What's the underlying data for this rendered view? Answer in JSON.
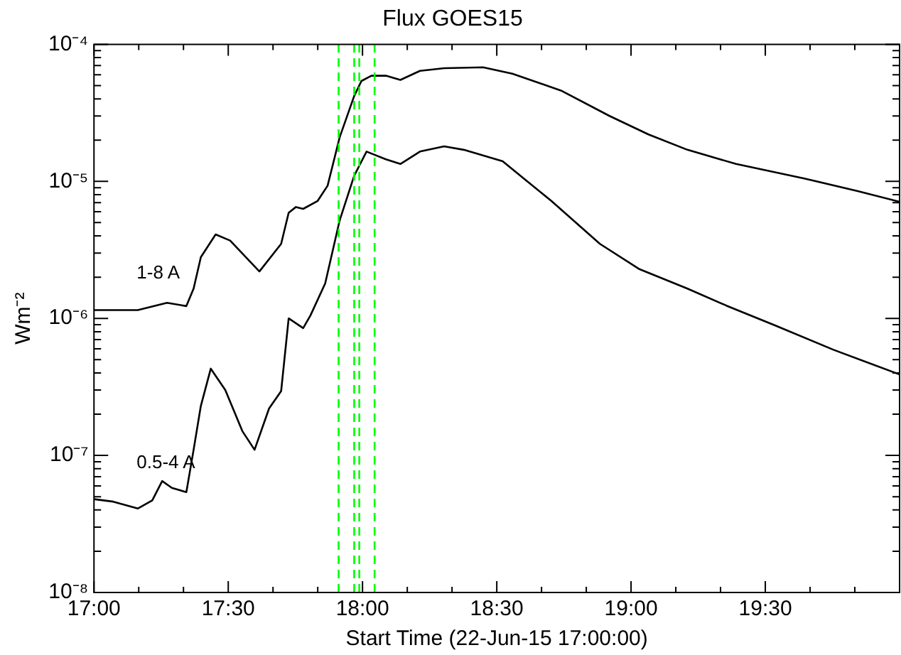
{
  "chart_data": {
    "type": "line",
    "title": "Flux GOES15",
    "xlabel": "Start Time (22-Jun-15 17:00:00)",
    "ylabel": "Wm⁻²",
    "log": "y",
    "grid": false,
    "legend": false,
    "marker": "none",
    "line_style": "solid",
    "xlim": [
      17,
      20
    ],
    "ylim": [
      1e-08,
      0.0001
    ],
    "xticks": [
      {
        "value": 17,
        "label": "17:00"
      },
      {
        "value": 17.1667,
        "label": null
      },
      {
        "value": 17.3333,
        "label": null
      },
      {
        "value": 17.5,
        "label": "17:30"
      },
      {
        "value": 17.6667,
        "label": null
      },
      {
        "value": 17.8333,
        "label": null
      },
      {
        "value": 18,
        "label": "18:00"
      },
      {
        "value": 18.1667,
        "label": null
      },
      {
        "value": 18.3333,
        "label": null
      },
      {
        "value": 18.5,
        "label": "18:30"
      },
      {
        "value": 18.6667,
        "label": null
      },
      {
        "value": 18.8333,
        "label": null
      },
      {
        "value": 19,
        "label": "19:00"
      },
      {
        "value": 19.1667,
        "label": null
      },
      {
        "value": 19.3333,
        "label": null
      },
      {
        "value": 19.5,
        "label": "19:30"
      },
      {
        "value": 19.6667,
        "label": null
      },
      {
        "value": 19.8333,
        "label": null
      }
    ],
    "yticks": [
      {
        "value": 1e-08,
        "label": "10⁻⁸"
      },
      {
        "value": 2e-08,
        "label": null
      },
      {
        "value": 3e-08,
        "label": null
      },
      {
        "value": 4e-08,
        "label": null
      },
      {
        "value": 5e-08,
        "label": null
      },
      {
        "value": 6e-08,
        "label": null
      },
      {
        "value": 7e-08,
        "label": null
      },
      {
        "value": 8e-08,
        "label": null
      },
      {
        "value": 9e-08,
        "label": null
      },
      {
        "value": 1e-07,
        "label": "10⁻⁷"
      },
      {
        "value": 2e-07,
        "label": null
      },
      {
        "value": 3e-07,
        "label": null
      },
      {
        "value": 4e-07,
        "label": null
      },
      {
        "value": 5e-07,
        "label": null
      },
      {
        "value": 6e-07,
        "label": null
      },
      {
        "value": 7e-07,
        "label": null
      },
      {
        "value": 8e-07,
        "label": null
      },
      {
        "value": 9e-07,
        "label": null
      },
      {
        "value": 1e-06,
        "label": "10⁻⁶"
      },
      {
        "value": 2e-06,
        "label": null
      },
      {
        "value": 3e-06,
        "label": null
      },
      {
        "value": 4e-06,
        "label": null
      },
      {
        "value": 5e-06,
        "label": null
      },
      {
        "value": 6e-06,
        "label": null
      },
      {
        "value": 7e-06,
        "label": null
      },
      {
        "value": 8e-06,
        "label": null
      },
      {
        "value": 9e-06,
        "label": null
      },
      {
        "value": 1e-05,
        "label": "10⁻⁵"
      },
      {
        "value": 2e-05,
        "label": null
      },
      {
        "value": 3e-05,
        "label": null
      },
      {
        "value": 4e-05,
        "label": null
      },
      {
        "value": 5e-05,
        "label": null
      },
      {
        "value": 6e-05,
        "label": null
      },
      {
        "value": 7e-05,
        "label": null
      },
      {
        "value": 8e-05,
        "label": null
      },
      {
        "value": 9e-05,
        "label": null
      },
      {
        "value": 0.0001,
        "label": "10⁻⁴"
      }
    ],
    "ref_lines": [
      {
        "axis": "x",
        "value": 17.911,
        "color": "#00ff00",
        "line_style": "dashed"
      },
      {
        "axis": "x",
        "value": 17.969,
        "color": "#00ff00",
        "line_style": "dashed"
      },
      {
        "axis": "x",
        "value": 17.988,
        "color": "#00ff00",
        "line_style": "dashed"
      },
      {
        "axis": "x",
        "value": 18.045,
        "color": "#00ff00",
        "line_style": "dashed"
      }
    ],
    "series": [
      {
        "name": "1-8 A",
        "color": "#000000",
        "x": [
          17.0,
          17.163,
          17.272,
          17.344,
          17.371,
          17.398,
          17.453,
          17.507,
          17.616,
          17.697,
          17.725,
          17.752,
          17.779,
          17.833,
          17.87,
          17.915,
          17.969,
          17.996,
          18.033,
          18.087,
          18.141,
          18.214,
          18.304,
          18.449,
          18.558,
          18.739,
          18.92,
          19.065,
          19.21,
          19.391,
          19.645,
          19.844,
          20.0
        ],
        "values": [
          1.15e-06,
          1.15e-06,
          1.3e-06,
          1.23e-06,
          1.65e-06,
          2.8e-06,
          4.1e-06,
          3.7e-06,
          2.2e-06,
          3.5e-06,
          5.9e-06,
          6.5e-06,
          6.3e-06,
          7.2e-06,
          9.3e-06,
          2.1e-05,
          4.2e-05,
          5.4e-05,
          5.9e-05,
          5.9e-05,
          5.5e-05,
          6.4e-05,
          6.7e-05,
          6.8e-05,
          6.1e-05,
          4.6e-05,
          3e-05,
          2.2e-05,
          1.7e-05,
          1.34e-05,
          1.05e-05,
          8.5e-06,
          7.1e-06
        ]
      },
      {
        "name": "0.5-4 A",
        "color": "#000000",
        "x": [
          17.0,
          17.072,
          17.163,
          17.217,
          17.254,
          17.29,
          17.344,
          17.371,
          17.398,
          17.435,
          17.489,
          17.553,
          17.598,
          17.652,
          17.697,
          17.725,
          17.779,
          17.806,
          17.861,
          17.915,
          17.969,
          18.015,
          18.087,
          18.141,
          18.214,
          18.304,
          18.377,
          18.522,
          18.703,
          18.884,
          19.029,
          19.21,
          19.355,
          19.536,
          19.754,
          20.0
        ],
        "values": [
          4.8e-08,
          4.6e-08,
          4.1e-08,
          4.7e-08,
          6.5e-08,
          5.8e-08,
          5.4e-08,
          1.1e-07,
          2.3e-07,
          4.3e-07,
          3e-07,
          1.5e-07,
          1.1e-07,
          2.2e-07,
          2.95e-07,
          1e-06,
          8.5e-07,
          1.05e-06,
          1.8e-06,
          5.2e-06,
          1.1e-05,
          1.65e-05,
          1.45e-05,
          1.34e-05,
          1.65e-05,
          1.8e-05,
          1.7e-05,
          1.4e-05,
          7.2e-06,
          3.5e-06,
          2.3e-06,
          1.65e-06,
          1.24e-06,
          8.9e-07,
          5.9e-07,
          3.9e-07
        ]
      }
    ]
  }
}
